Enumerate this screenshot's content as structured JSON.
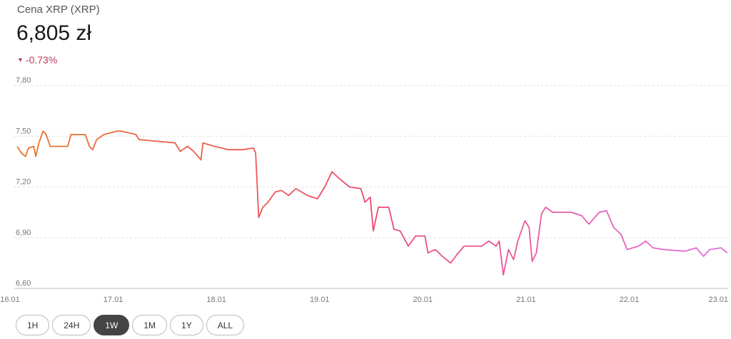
{
  "header": {
    "title": "Cena XRP (XRP)",
    "price": "6,805 zł",
    "change": "-0.73%"
  },
  "ranges": {
    "buttons": [
      "1H",
      "24H",
      "1W",
      "1M",
      "1Y",
      "ALL"
    ],
    "active": 2
  },
  "chart_data": {
    "type": "line",
    "colors": [
      "#e8782a",
      "#ec4a6e",
      "#e46ee0"
    ],
    "grid": true,
    "xlim": [
      16,
      23
    ],
    "ylim": [
      6.6,
      7.8
    ],
    "xticks": [
      {
        "value": 16,
        "label": "16.01"
      },
      {
        "value": 17,
        "label": "17.01"
      },
      {
        "value": 18,
        "label": "18.01"
      },
      {
        "value": 19,
        "label": "19.01"
      },
      {
        "value": 20,
        "label": "20.01"
      },
      {
        "value": 21,
        "label": "21.01"
      },
      {
        "value": 22,
        "label": "22.01"
      },
      {
        "value": 23,
        "label": "23.01"
      }
    ],
    "yticks": [
      {
        "value": 6.6,
        "label": "6,60"
      },
      {
        "value": 6.9,
        "label": "6,90"
      },
      {
        "value": 7.2,
        "label": "7,20"
      },
      {
        "value": 7.5,
        "label": "7,50"
      },
      {
        "value": 7.8,
        "label": "7,80"
      }
    ],
    "x": [
      16.07,
      16.11,
      16.15,
      16.18,
      16.23,
      16.25,
      16.28,
      16.32,
      16.35,
      16.39,
      16.56,
      16.59,
      16.73,
      16.77,
      16.8,
      16.84,
      16.91,
      17.04,
      17.08,
      17.22,
      17.25,
      17.6,
      17.65,
      17.72,
      17.78,
      17.85,
      17.87,
      17.98,
      18.12,
      18.25,
      18.36,
      18.38,
      18.41,
      18.45,
      18.5,
      18.57,
      18.63,
      18.7,
      18.77,
      18.88,
      18.98,
      19.05,
      19.12,
      19.19,
      19.29,
      19.4,
      19.44,
      19.49,
      19.52,
      19.57,
      19.67,
      19.72,
      19.78,
      19.86,
      19.93,
      20.02,
      20.05,
      20.12,
      20.19,
      20.27,
      20.33,
      20.4,
      20.57,
      20.64,
      20.71,
      20.74,
      20.78,
      20.83,
      20.88,
      20.92,
      20.99,
      21.03,
      21.06,
      21.1,
      21.15,
      21.19,
      21.26,
      21.44,
      21.54,
      21.61,
      21.71,
      21.78,
      21.85,
      21.92,
      21.98,
      22.09,
      22.16,
      22.23,
      22.33,
      22.54,
      22.65,
      22.72,
      22.78,
      22.89,
      22.95
    ],
    "values": [
      7.44,
      7.4,
      7.38,
      7.43,
      7.44,
      7.38,
      7.46,
      7.53,
      7.51,
      7.44,
      7.44,
      7.51,
      7.51,
      7.44,
      7.42,
      7.48,
      7.51,
      7.53,
      7.53,
      7.51,
      7.48,
      7.46,
      7.41,
      7.44,
      7.41,
      7.36,
      7.46,
      7.44,
      7.42,
      7.42,
      7.43,
      7.4,
      7.02,
      7.08,
      7.11,
      7.17,
      7.18,
      7.15,
      7.19,
      7.15,
      7.13,
      7.2,
      7.29,
      7.25,
      7.2,
      7.19,
      7.11,
      7.14,
      6.94,
      7.08,
      7.08,
      6.95,
      6.94,
      6.85,
      6.91,
      6.91,
      6.81,
      6.83,
      6.79,
      6.75,
      6.8,
      6.85,
      6.85,
      6.88,
      6.85,
      6.88,
      6.68,
      6.83,
      6.77,
      6.88,
      7.0,
      6.96,
      6.76,
      6.81,
      7.04,
      7.08,
      7.05,
      7.05,
      7.03,
      6.98,
      7.05,
      7.06,
      6.96,
      6.92,
      6.83,
      6.85,
      6.88,
      6.84,
      6.83,
      6.82,
      6.84,
      6.79,
      6.83,
      6.84,
      6.81
    ]
  }
}
